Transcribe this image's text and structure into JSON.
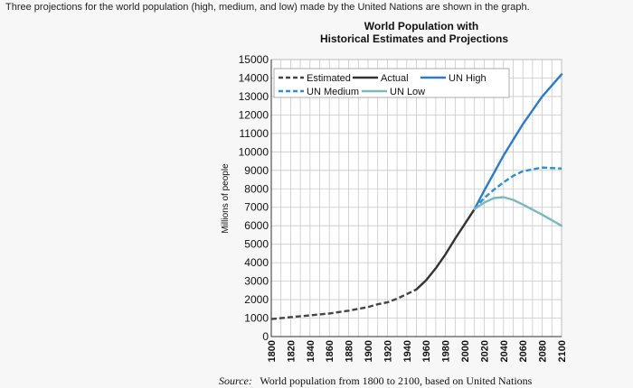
{
  "question": "Three projections for the world population (high, medium, and low) made by the United Nations are shown in the graph.",
  "chart_data": {
    "type": "line",
    "title": "World Population with",
    "subtitle": "Historical Estimates and Projections",
    "ylabel": "Millions of people",
    "source_label": "Source:",
    "source_text": "World population from 1800 to 2100, based on United Nations",
    "xlim": [
      1800,
      2100
    ],
    "ylim": [
      0,
      15000
    ],
    "x_ticks": [
      "1800",
      "1820",
      "1840",
      "1860",
      "1880",
      "1900",
      "1920",
      "1940",
      "1960",
      "1980",
      "2000",
      "2020",
      "2040",
      "2060",
      "2080",
      "2100"
    ],
    "y_ticks": [
      "0",
      "1000",
      "2000",
      "3000",
      "4000",
      "5000",
      "6000",
      "7000",
      "8000",
      "9000",
      "10000",
      "11000",
      "12000",
      "13000",
      "14000",
      "15000"
    ],
    "grid": true,
    "legend_position": "top",
    "series": [
      {
        "name": "Estimated",
        "style": "dashed",
        "color": "#444444",
        "x": [
          1800,
          1820,
          1840,
          1860,
          1880,
          1900,
          1910,
          1920,
          1930,
          1940,
          1950
        ],
        "y": [
          950,
          1050,
          1150,
          1250,
          1400,
          1600,
          1750,
          1850,
          2050,
          2300,
          2550
        ]
      },
      {
        "name": "Actual",
        "style": "solid",
        "color": "#333333",
        "x": [
          1950,
          1960,
          1970,
          1980,
          1990,
          2000,
          2010
        ],
        "y": [
          2550,
          3050,
          3700,
          4450,
          5300,
          6100,
          6900
        ]
      },
      {
        "name": "UN High",
        "style": "solid",
        "color": "#2b7bc8",
        "x": [
          2010,
          2020,
          2040,
          2060,
          2080,
          2100
        ],
        "y": [
          6900,
          7900,
          9800,
          11500,
          13000,
          14200
        ]
      },
      {
        "name": "UN Medium",
        "style": "dashed",
        "color": "#2f8fce",
        "x": [
          2010,
          2020,
          2030,
          2040,
          2050,
          2060,
          2080,
          2100
        ],
        "y": [
          6900,
          7500,
          7950,
          8350,
          8700,
          8950,
          9150,
          9100
        ]
      },
      {
        "name": "UN Low",
        "style": "solid",
        "color": "#7ab8bd",
        "x": [
          2010,
          2020,
          2030,
          2040,
          2050,
          2060,
          2080,
          2100
        ],
        "y": [
          6900,
          7250,
          7500,
          7550,
          7400,
          7150,
          6600,
          6000
        ]
      }
    ]
  }
}
